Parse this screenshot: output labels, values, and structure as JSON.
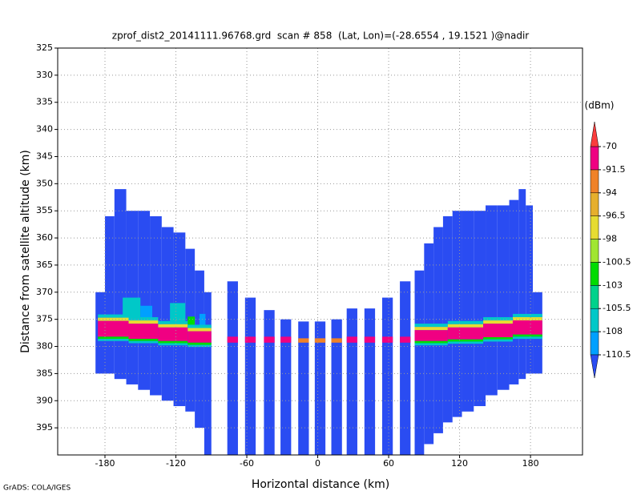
{
  "chart_data": {
    "type": "heatmap",
    "title": "zprof_dist2_20141111.96768.grd  scan # 858  (Lat, Lon)=(-28.6554 , 19.1521 )@nadir",
    "x_label": "Horizontal distance (km)",
    "y_label": "Distance from satellite altitude (km)",
    "footer": "GrADS: COLA/IGES",
    "xlim": [
      -220,
      224
    ],
    "ylim": [
      325,
      400
    ],
    "y_inverted": true,
    "xticks": [
      -180,
      -120,
      -60,
      0,
      60,
      120,
      180
    ],
    "yticks": [
      325,
      330,
      335,
      340,
      345,
      350,
      355,
      360,
      365,
      370,
      375,
      380,
      385,
      390,
      395
    ],
    "grid": true,
    "colorbar": {
      "label": "(dBm)",
      "levels": [
        -110.5,
        -108,
        -105.5,
        -103,
        -100.5,
        -98,
        -96.5,
        -94,
        -91.5,
        -70
      ],
      "colors": [
        "#2a4cf2",
        "#00a0ff",
        "#00c8c8",
        "#00d28c",
        "#00dc00",
        "#a0e632",
        "#e6dc32",
        "#e6af2d",
        "#f08228",
        "#f00082",
        "#fa3c3c"
      ]
    },
    "cells": [
      [
        -188,
        -180,
        370,
        385,
        -112
      ],
      [
        -180,
        -172,
        356,
        385,
        -112
      ],
      [
        -172,
        -162,
        351,
        386,
        -112
      ],
      [
        -162,
        -152,
        355,
        387,
        -112
      ],
      [
        -152,
        -142,
        355,
        388,
        -112
      ],
      [
        -142,
        -132,
        356,
        389,
        -112
      ],
      [
        -132,
        -122,
        358,
        390,
        -112
      ],
      [
        -122,
        -112,
        359,
        391,
        -112
      ],
      [
        -112,
        -104,
        362,
        392,
        -112
      ],
      [
        -104,
        -96,
        366,
        395,
        -112
      ],
      [
        -96,
        -90,
        370,
        400,
        -112
      ],
      [
        -76.5,
        -67.5,
        368,
        400,
        -112
      ],
      [
        -61.5,
        -52.5,
        371,
        400,
        -112
      ],
      [
        -45.5,
        -36.5,
        373.3,
        400,
        -112
      ],
      [
        -31.5,
        -22.5,
        375,
        400,
        -112
      ],
      [
        -16.5,
        -7.5,
        375.4,
        400,
        -112
      ],
      [
        -2.5,
        6.5,
        375.4,
        400,
        -112
      ],
      [
        11.5,
        20.5,
        375,
        400,
        -112
      ],
      [
        24.5,
        33.5,
        373,
        400,
        -112
      ],
      [
        39.5,
        48.5,
        373,
        400,
        -112
      ],
      [
        54.5,
        63.5,
        371,
        400,
        -112
      ],
      [
        69.5,
        78.5,
        368,
        400,
        -112
      ],
      [
        82,
        90,
        366,
        400,
        -112
      ],
      [
        90,
        98,
        361,
        398,
        -112
      ],
      [
        98,
        106,
        358,
        396,
        -112
      ],
      [
        106,
        114,
        356,
        394,
        -112
      ],
      [
        114,
        122,
        355,
        393,
        -112
      ],
      [
        122,
        132,
        355,
        392,
        -112
      ],
      [
        132,
        142,
        355,
        391,
        -112
      ],
      [
        142,
        152,
        354,
        389,
        -112
      ],
      [
        152,
        162,
        354,
        388,
        -112
      ],
      [
        162,
        170,
        353,
        387,
        -112
      ],
      [
        170,
        176,
        351,
        386,
        -112
      ],
      [
        176,
        182,
        354,
        385,
        -112
      ],
      [
        182,
        190,
        370,
        385,
        -112
      ],
      [
        -165,
        -150,
        371,
        375,
        -107
      ],
      [
        -150,
        -140,
        372.5,
        375,
        -109
      ],
      [
        -125,
        -112,
        372,
        376,
        -107
      ],
      [
        -110,
        -104,
        374.5,
        376,
        -101
      ],
      [
        -100,
        -95,
        374,
        376.5,
        -109
      ],
      [
        -186,
        -160,
        374.1,
        374.7,
        -107
      ],
      [
        -186,
        -160,
        374.7,
        375.3,
        -97
      ],
      [
        -186,
        -160,
        375.3,
        378.2,
        -85
      ],
      [
        -186,
        -160,
        378.2,
        378.6,
        -102
      ],
      [
        -186,
        -160,
        378.6,
        379,
        -107
      ],
      [
        -160,
        -135,
        374.6,
        375.2,
        -107
      ],
      [
        -160,
        -135,
        375.2,
        375.8,
        -97
      ],
      [
        -160,
        -135,
        375.8,
        378.6,
        -85
      ],
      [
        -160,
        -135,
        378.6,
        379,
        -102
      ],
      [
        -160,
        -135,
        379,
        379.4,
        -107
      ],
      [
        -135,
        -110,
        375.3,
        375.9,
        -107
      ],
      [
        -135,
        -110,
        375.9,
        376.5,
        -97
      ],
      [
        -135,
        -110,
        376.5,
        379,
        -85
      ],
      [
        -135,
        -110,
        379,
        379.4,
        -102
      ],
      [
        -135,
        -110,
        379.4,
        379.8,
        -107
      ],
      [
        -110,
        -90,
        376,
        376.6,
        -107
      ],
      [
        -110,
        -90,
        376.6,
        377.2,
        -97
      ],
      [
        -110,
        -90,
        377.2,
        379.3,
        -85
      ],
      [
        -110,
        -90,
        379.3,
        379.7,
        -102
      ],
      [
        -110,
        -90,
        379.7,
        380.1,
        -107
      ],
      [
        82,
        110,
        375.8,
        376.4,
        -107
      ],
      [
        82,
        110,
        376.4,
        377,
        -97
      ],
      [
        82,
        110,
        377,
        379,
        -85
      ],
      [
        82,
        110,
        379,
        379.4,
        -102
      ],
      [
        82,
        110,
        379.4,
        379.8,
        -107
      ],
      [
        110,
        140,
        375.3,
        375.9,
        -107
      ],
      [
        110,
        140,
        375.9,
        376.5,
        -97
      ],
      [
        110,
        140,
        376.5,
        378.7,
        -85
      ],
      [
        110,
        140,
        378.7,
        379.1,
        -102
      ],
      [
        110,
        140,
        379.1,
        379.5,
        -107
      ],
      [
        140,
        165,
        374.6,
        375.2,
        -107
      ],
      [
        140,
        165,
        375.2,
        375.8,
        -97
      ],
      [
        140,
        165,
        375.8,
        378.3,
        -85
      ],
      [
        140,
        165,
        378.3,
        378.7,
        -102
      ],
      [
        140,
        165,
        378.7,
        379.1,
        -107
      ],
      [
        165,
        190,
        374,
        374.6,
        -107
      ],
      [
        165,
        190,
        374.6,
        375.2,
        -97
      ],
      [
        165,
        190,
        375.2,
        377.8,
        -85
      ],
      [
        165,
        190,
        377.8,
        378.2,
        -102
      ],
      [
        165,
        190,
        378.2,
        378.6,
        -107
      ],
      [
        -76.5,
        -67.5,
        378.2,
        379.3,
        -85
      ],
      [
        -61.5,
        -52.5,
        378.2,
        379.3,
        -85
      ],
      [
        -45.5,
        -36.5,
        378.2,
        379.3,
        -85
      ],
      [
        -31.5,
        -22.5,
        378.2,
        379.3,
        -85
      ],
      [
        -16.5,
        -7.5,
        378.5,
        379.3,
        -93
      ],
      [
        -2.5,
        6.5,
        378.5,
        379.3,
        -93
      ],
      [
        11.5,
        20.5,
        378.5,
        379.3,
        -93
      ],
      [
        24.5,
        33.5,
        378.2,
        379.3,
        -85
      ],
      [
        39.5,
        48.5,
        378.2,
        379.3,
        -85
      ],
      [
        54.5,
        63.5,
        378.2,
        379.3,
        -85
      ],
      [
        69.5,
        78.5,
        378.2,
        379.3,
        -85
      ]
    ]
  }
}
